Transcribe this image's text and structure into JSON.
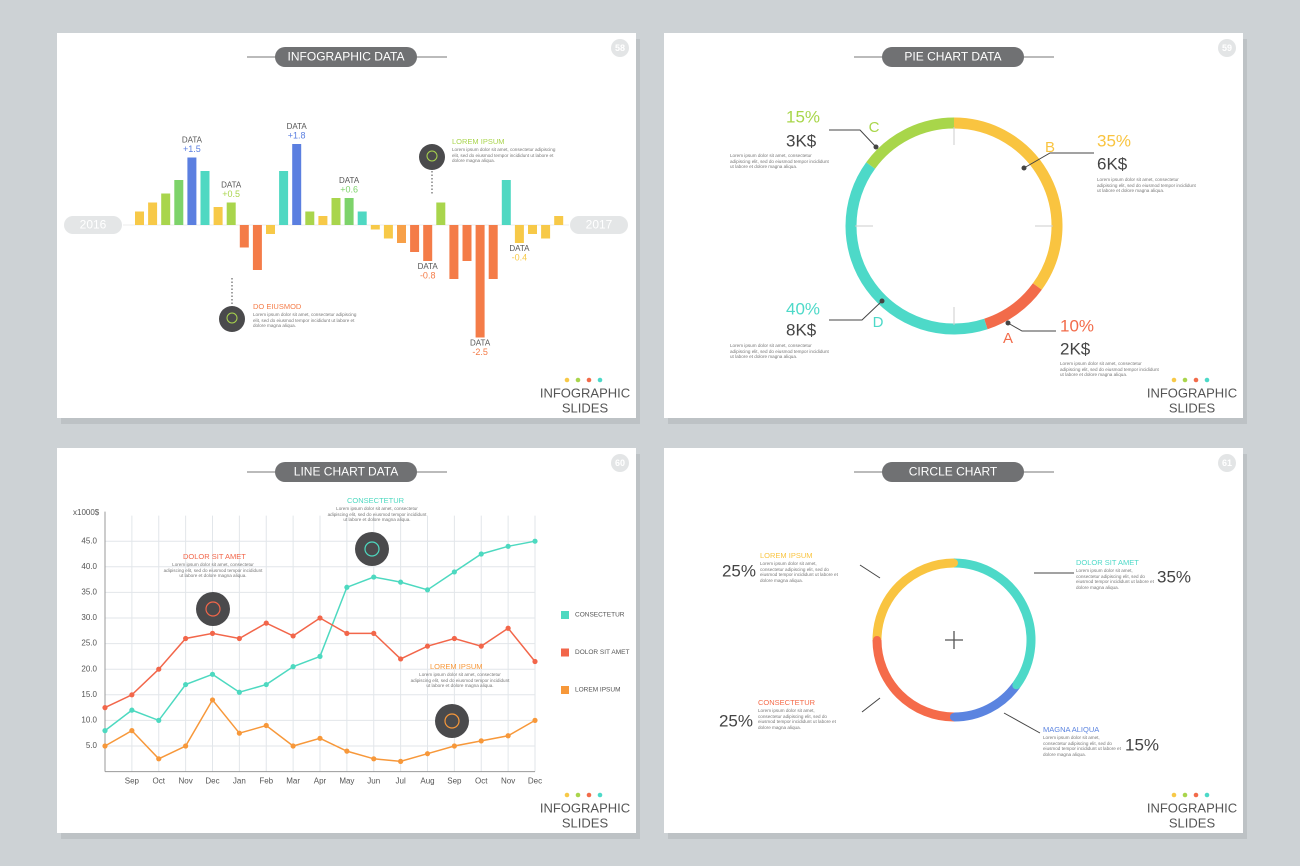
{
  "chart_data": [
    {
      "type": "bar",
      "title": "INFOGRAPHIC DATA",
      "page": "58",
      "footer": [
        "INFOGRAPHIC",
        "SLIDES"
      ],
      "start_label": "2016",
      "end_label": "2017",
      "label_prefix": "DATA",
      "values": [
        0.3,
        0.5,
        0.7,
        1.0,
        1.5,
        1.2,
        0.4,
        0.5,
        -0.5,
        -1.0,
        -0.2,
        1.2,
        1.8,
        0.3,
        0.2,
        0.6,
        0.6,
        0.3,
        -0.1,
        -0.3,
        -0.4,
        -0.6,
        -0.8,
        0.5,
        -1.2,
        -0.8,
        -2.5,
        -1.2,
        1.0,
        -0.4,
        -0.2,
        -0.3,
        0.2
      ],
      "value_labels": [
        null,
        null,
        null,
        null,
        "+1.5",
        null,
        null,
        "+0.5",
        null,
        null,
        null,
        null,
        "+1.8",
        null,
        null,
        null,
        "+0.6",
        null,
        null,
        null,
        null,
        null,
        "-0.8",
        null,
        null,
        null,
        "-2.5",
        null,
        null,
        "-0.4",
        null,
        null,
        null
      ],
      "colors": [
        "#f7c948",
        "#f7c948",
        "#a9d54c",
        "#7dd36a",
        "#5b7fe0",
        "#4fd8c2",
        "#f7c948",
        "#a9d54c",
        "#f47c48",
        "#f47c48",
        "#f7c948",
        "#4fd8c2",
        "#5b7fe0",
        "#a9d54c",
        "#f7c948",
        "#a9d54c",
        "#7dd36a",
        "#4fd8c2",
        "#f7c948",
        "#f7c948",
        "#f7a048",
        "#f47c48",
        "#f47c48",
        "#a9d54c",
        "#f47c48",
        "#f47c48",
        "#f47c48",
        "#f47c48",
        "#4fd8c2",
        "#f7c948",
        "#f7c948",
        "#f7c948",
        "#f7c948"
      ],
      "annotations": [
        {
          "title": "LOREM IPSUM",
          "text": "Lorem ipsum dolor sit amet, consectetur adipiscing elit, sed do eiusmod tempor incididunt ut labore et dolore magna aliqua."
        },
        {
          "title": "DO EIUSMOD",
          "text": "Lorem ipsum dolor sit amet, consectetur adipiscing elit, sed do eiusmod tempor incididunt ut labore et dolore magna aliqua."
        }
      ]
    },
    {
      "type": "pie",
      "title": "PIE CHART DATA",
      "page": "59",
      "footer": [
        "INFOGRAPHIC",
        "SLIDES"
      ],
      "categories": [
        "B",
        "A",
        "D",
        "C"
      ],
      "values": [
        35,
        10,
        40,
        15
      ],
      "value_labels": [
        "35%",
        "10%",
        "40%",
        "15%"
      ],
      "amounts": [
        "6K$",
        "2K$",
        "8K$",
        "3K$"
      ],
      "colors": [
        "#f9c440",
        "#f26b4a",
        "#4dd9c8",
        "#a8d64a"
      ],
      "text": "Lorem ipsum dolor sit amet, consectetur adipiscing elit, sed do eiusmod tempor incididunt ut labore et dolore magna aliqua."
    },
    {
      "type": "line",
      "title": "LINE CHART DATA",
      "page": "60",
      "footer": [
        "INFOGRAPHIC",
        "SLIDES"
      ],
      "y_label": "x1000$",
      "categories": [
        null,
        "Sep",
        "Oct",
        "Nov",
        "Dec",
        "Jan",
        "Feb",
        "Mar",
        "Apr",
        "May",
        "Jun",
        "Jul",
        "Aug",
        "Sep",
        "Oct",
        "Nov",
        "Dec"
      ],
      "ylim": [
        0,
        50
      ],
      "yticks": [
        {
          "value": 5,
          "label": "5.0"
        },
        {
          "value": 10,
          "label": "10.0"
        },
        {
          "value": 15,
          "label": "15.0"
        },
        {
          "value": 20,
          "label": "20.0"
        },
        {
          "value": 25,
          "label": "25.0"
        },
        {
          "value": 30,
          "label": "30.0"
        },
        {
          "value": 35,
          "label": "35.0"
        },
        {
          "value": 40,
          "label": "40.0"
        },
        {
          "value": 45,
          "label": "45.0"
        }
      ],
      "grid": true,
      "series": [
        {
          "name": "CONSECTETUR",
          "color": "#4dd9c0",
          "values": [
            8,
            12,
            10,
            17,
            19,
            15.5,
            17,
            20.5,
            22.5,
            36,
            38,
            37,
            35.5,
            39,
            42.5,
            44,
            45
          ]
        },
        {
          "name": "DOLOR SIT AMET",
          "color": "#f2664a",
          "values": [
            12.5,
            15,
            20,
            26,
            27,
            26,
            29,
            26.5,
            30,
            27,
            27,
            22,
            24.5,
            26,
            24.5,
            28,
            21.5
          ]
        },
        {
          "name": "LOREM IPSUM",
          "color": "#f7983a",
          "values": [
            5,
            8,
            2.5,
            5,
            14,
            7.5,
            9,
            5,
            6.5,
            4,
            2.5,
            2,
            3.5,
            5,
            6,
            7,
            10
          ]
        }
      ],
      "text": "Lorem ipsum dolor sit amet, consectetur adipiscing elit, sed do eiusmod tempor incididunt ut labore et dolore magna aliqua."
    },
    {
      "type": "pie",
      "title": "CIRCLE CHART",
      "page": "61",
      "footer": [
        "INFOGRAPHIC",
        "SLIDES"
      ],
      "markers": true,
      "categories": [
        "DOLOR SIT AMET",
        "MAGNA ALIQUA",
        "CONSECTETUR",
        "LOREM IPSUM"
      ],
      "values": [
        35,
        15,
        25,
        25
      ],
      "value_labels": [
        "35%",
        "15%",
        "25%",
        "25%"
      ],
      "colors": [
        "#4dd9c8",
        "#5b84e0",
        "#f56b4a",
        "#f9c440"
      ],
      "text": "Lorem ipsum dolor sit amet, consectetur adipiscing elit, sed do eiusmod tempor incididunt ut labore et dolore magna aliqua."
    }
  ]
}
